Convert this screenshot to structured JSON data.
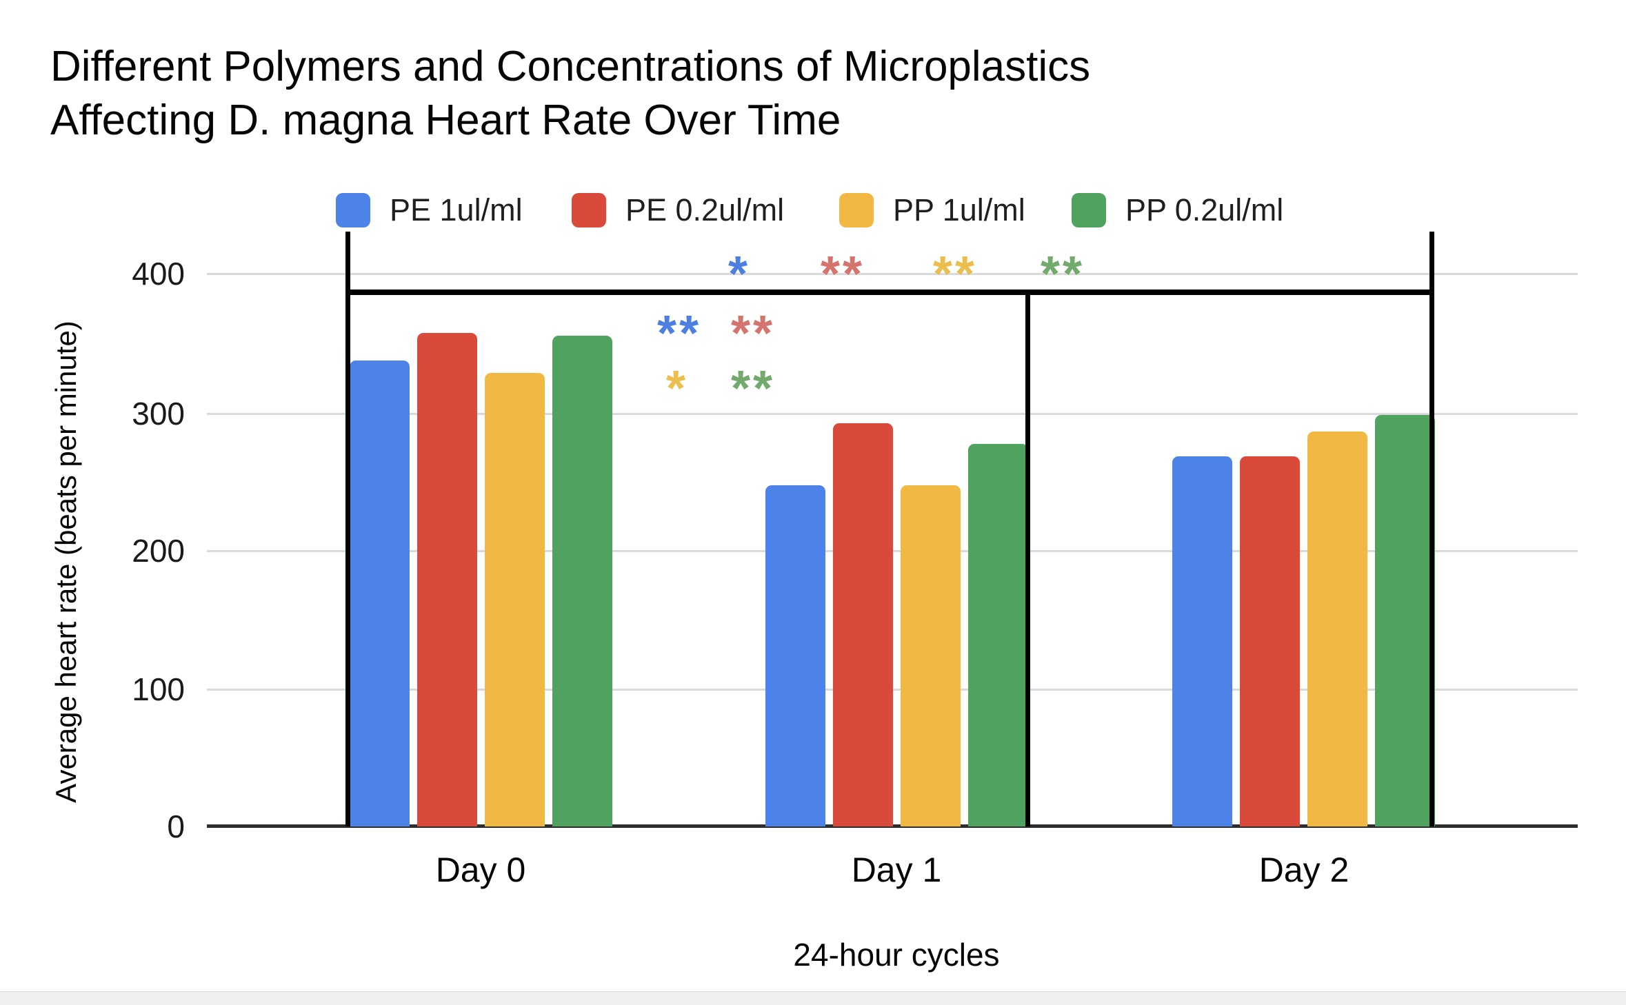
{
  "title": {
    "line1": "Different Polymers and Concentrations of Microplastics",
    "line2": "Affecting D. magna Heart Rate Over Time"
  },
  "axes": {
    "y_title": "Average heart rate (beats per minute)",
    "x_title": "24-hour cycles",
    "y_ticks": [
      "400",
      "300",
      "200",
      "100",
      "0"
    ]
  },
  "chart_data": {
    "type": "bar",
    "categories": [
      "Day 0",
      "Day 1",
      "Day 2"
    ],
    "series": [
      {
        "name": "PE 1ul/ml",
        "color": "#4d82e8",
        "values": [
          337,
          247,
          268
        ]
      },
      {
        "name": "PE 0.2ul/ml",
        "color": "#da4a3b",
        "values": [
          357,
          292,
          268
        ]
      },
      {
        "name": "PP 1ul/ml",
        "color": "#f2b844",
        "values": [
          328,
          247,
          286
        ]
      },
      {
        "name": "PP 0.2ul/ml",
        "color": "#50a35f",
        "values": [
          355,
          277,
          298
        ]
      }
    ],
    "title": "Different Polymers and Concentrations of Microplastics Affecting D. magna Heart Rate Over Time",
    "xlabel": "24-hour cycles",
    "ylabel": "Average heart rate (beats per minute)",
    "ylim": [
      0,
      400
    ],
    "grid": true,
    "legend_position": "top",
    "gridline_color": "#d9d9d9",
    "frame_color": "#000000"
  },
  "significance": {
    "above_bracket": [
      {
        "symbol": "*",
        "series": "PE 1ul/ml",
        "color": "#4d7fe0"
      },
      {
        "symbol": "**",
        "series": "PE 0.2ul/ml",
        "color": "#d5736c"
      },
      {
        "symbol": "**",
        "series": "PP 1ul/ml",
        "color": "#eabf4e"
      },
      {
        "symbol": "**",
        "series": "PP 0.2ul/ml",
        "color": "#72aa6d"
      }
    ],
    "day1_upper": [
      {
        "symbol": "**",
        "series": "PE 1ul/ml",
        "color": "#4d7fe0"
      },
      {
        "symbol": "**",
        "series": "PE 0.2ul/ml",
        "color": "#d5736c"
      }
    ],
    "day1_lower": [
      {
        "symbol": "*",
        "series": "PP 1ul/ml",
        "color": "#eabf4e"
      },
      {
        "symbol": "**",
        "series": "PP 0.2ul/ml",
        "color": "#72aa6d"
      }
    ]
  }
}
